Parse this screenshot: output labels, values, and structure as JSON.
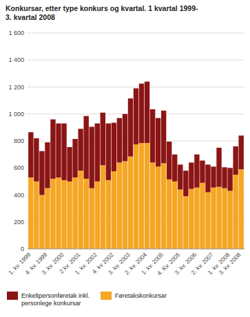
{
  "chart_data": {
    "type": "bar",
    "stacked": true,
    "title": "Konkursar, etter type konkurs og kvartal. 1 kvartal 1999-\n3. kvartal 2008",
    "categories": [
      "1. kv. 1999",
      null,
      null,
      "4. kv. 1999",
      null,
      null,
      "3. kv. 2000",
      null,
      null,
      "2 kv. 2001",
      null,
      null,
      "1. kv. 2002",
      null,
      null,
      "4. kv 2002",
      null,
      null,
      "3. kv. 2003",
      null,
      null,
      "2. kv. 2004",
      null,
      null,
      "1. kv. 2005",
      null,
      null,
      "4. Kv. 2005",
      null,
      null,
      "3. kv. 2006",
      null,
      null,
      "2. kv. 2007",
      null,
      null,
      "1. kv. 2008",
      null,
      "3. kv. 2008"
    ],
    "series": [
      {
        "name": "Føretakskonkursar",
        "color": "#F5A623",
        "values": [
          530,
          500,
          400,
          450,
          520,
          530,
          510,
          500,
          530,
          580,
          520,
          450,
          500,
          620,
          510,
          575,
          640,
          650,
          685,
          775,
          785,
          785,
          640,
          610,
          635,
          515,
          500,
          440,
          390,
          445,
          455,
          490,
          420,
          455,
          460,
          450,
          430,
          550,
          590
        ]
      },
      {
        "name": "Enkeltpersonføretak inkl.\npersonlege konkursar",
        "color": "#8B1515",
        "values": [
          335,
          320,
          325,
          340,
          440,
          400,
          420,
          255,
          285,
          310,
          465,
          455,
          430,
          390,
          420,
          360,
          330,
          350,
          430,
          415,
          440,
          455,
          395,
          360,
          390,
          280,
          200,
          185,
          190,
          195,
          245,
          165,
          205,
          155,
          290,
          155,
          170,
          210,
          250
        ]
      }
    ],
    "ylim": [
      0,
      1600
    ],
    "yticks": [
      0,
      200,
      400,
      600,
      800,
      {
        "value": 1000,
        "label": "1 000"
      },
      {
        "value": 1200,
        "label": "1 200"
      },
      {
        "value": 1400,
        "label": "1 400"
      },
      {
        "value": 1600,
        "label": "1 600"
      }
    ],
    "grid": true,
    "legend": "bottom"
  }
}
